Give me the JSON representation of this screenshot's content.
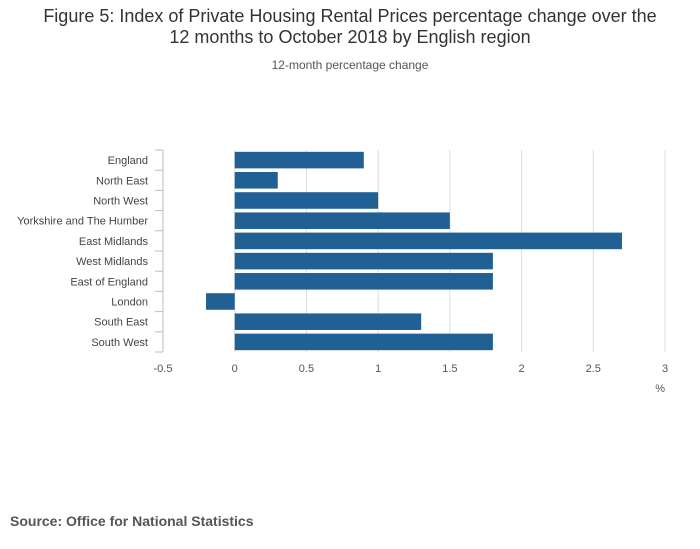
{
  "title_line1": "Figure 5: Index of Private Housing Rental Prices percentage change over the",
  "title_line2": "12 months to October 2018 by English region",
  "subtitle": "12-month percentage change",
  "source": "Source: Office for National Statistics",
  "colors": {
    "bar": "#206095",
    "grid": "#dddddd",
    "axis": "#bbbbcc"
  },
  "chart_data": {
    "type": "bar",
    "orientation": "horizontal",
    "title": "Figure 5: Index of Private Housing Rental Prices percentage change over the 12 months to October 2018 by English region",
    "subtitle": "12-month percentage change",
    "categories": [
      "England",
      "North East",
      "North West",
      "Yorkshire and The Humber",
      "East Midlands",
      "West Midlands",
      "East of England",
      "London",
      "South East",
      "South West"
    ],
    "values": [
      0.9,
      0.3,
      1.0,
      1.5,
      2.7,
      1.8,
      1.8,
      -0.2,
      1.3,
      1.8
    ],
    "xlim": [
      -0.5,
      3
    ],
    "xticks": [
      -0.5,
      0,
      0.5,
      1,
      1.5,
      2,
      2.5,
      3
    ],
    "xtick_labels": [
      "-0.5",
      "0",
      "0.5",
      "1",
      "1.5",
      "2",
      "2.5",
      "3"
    ],
    "xlabel": "%",
    "ylabel": "",
    "grid": true,
    "legend": "none"
  }
}
